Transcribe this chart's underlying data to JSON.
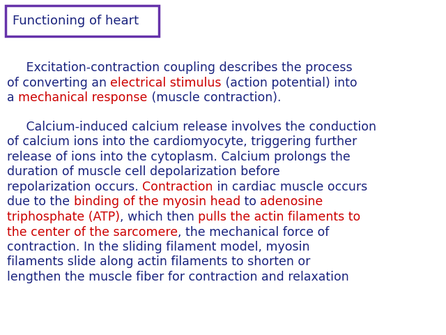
{
  "title": "Functioning of heart",
  "title_box_color": "#6633aa",
  "bg_color": "#ffffff",
  "font_family": "Comic Sans MS",
  "dark_color": "#1a237e",
  "red_color": "#cc0000",
  "title_fontsize": 13,
  "body_fontsize": 12.5,
  "paragraph1_lines": [
    [
      {
        "text": "     Excitation-contraction coupling describes the process",
        "color": "#1a237e"
      }
    ],
    [
      {
        "text": "of converting an ",
        "color": "#1a237e"
      },
      {
        "text": "electrical stimulus",
        "color": "#cc0000"
      },
      {
        "text": " (action potential) into",
        "color": "#1a237e"
      }
    ],
    [
      {
        "text": "a ",
        "color": "#1a237e"
      },
      {
        "text": "mechanical response",
        "color": "#cc0000"
      },
      {
        "text": " (muscle contraction).",
        "color": "#1a237e"
      }
    ]
  ],
  "paragraph2_lines": [
    [
      {
        "text": "     Calcium-induced calcium release involves the conduction",
        "color": "#1a237e"
      }
    ],
    [
      {
        "text": "of calcium ions into the cardiomyocyte, triggering further",
        "color": "#1a237e"
      }
    ],
    [
      {
        "text": "release of ions into the cytoplasm. Calcium prolongs the",
        "color": "#1a237e"
      }
    ],
    [
      {
        "text": "duration of muscle cell depolarization before",
        "color": "#1a237e"
      }
    ],
    [
      {
        "text": "repolarization occurs. ",
        "color": "#1a237e"
      },
      {
        "text": "Contraction",
        "color": "#cc0000"
      },
      {
        "text": " in cardiac muscle occurs",
        "color": "#1a237e"
      }
    ],
    [
      {
        "text": "due to the ",
        "color": "#1a237e"
      },
      {
        "text": "binding of the myosin head",
        "color": "#cc0000"
      },
      {
        "text": " to ",
        "color": "#1a237e"
      },
      {
        "text": "adenosine",
        "color": "#cc0000"
      }
    ],
    [
      {
        "text": "triphosphate (ATP)",
        "color": "#cc0000"
      },
      {
        "text": ", which then ",
        "color": "#1a237e"
      },
      {
        "text": "pulls the actin filaments to",
        "color": "#cc0000"
      }
    ],
    [
      {
        "text": "the center of the sarcomere",
        "color": "#cc0000"
      },
      {
        "text": ", the mechanical force of",
        "color": "#1a237e"
      }
    ],
    [
      {
        "text": "contraction. In the sliding filament model, myosin",
        "color": "#1a237e"
      }
    ],
    [
      {
        "text": "filaments slide along actin filaments to shorten or",
        "color": "#1a237e"
      }
    ],
    [
      {
        "text": "lengthen the muscle fiber for contraction and relaxation",
        "color": "#1a237e"
      }
    ]
  ],
  "fig_width": 6.4,
  "fig_height": 4.8,
  "dpi": 100
}
